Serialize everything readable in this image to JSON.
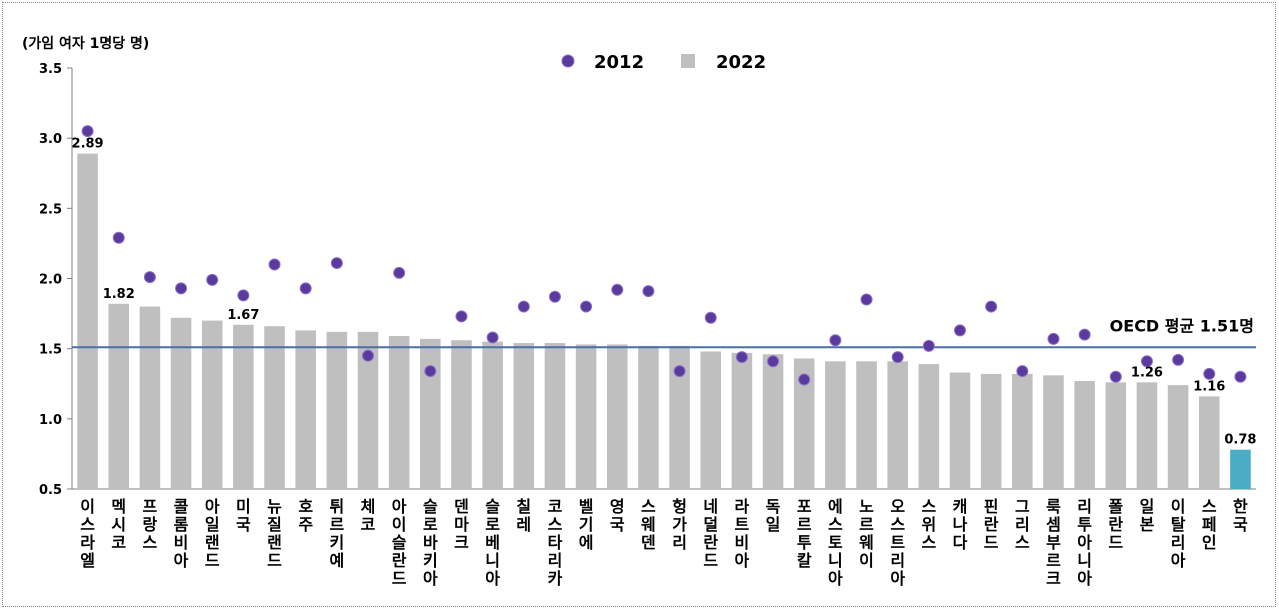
{
  "chart_data": {
    "type": "bar",
    "unit_label": "(가임 여자 1명당 명)",
    "ylim": [
      0.5,
      3.5
    ],
    "yticks": [
      "0.5",
      "1.0",
      "1.5",
      "2.0",
      "2.5",
      "3.0",
      "3.5"
    ],
    "legend": {
      "position": "top-center",
      "items": [
        "2012",
        "2022"
      ]
    },
    "categories": [
      "이스라엘",
      "멕시코",
      "프랑스",
      "콜롬비아",
      "아일랜드",
      "미국",
      "뉴질랜드",
      "호주",
      "튀르키예",
      "체코",
      "아이슬란드",
      "슬로바키아",
      "덴마크",
      "슬로베니아",
      "칠레",
      "코스타리카",
      "벨기에",
      "영국",
      "스웨덴",
      "헝가리",
      "네덜란드",
      "라트비아",
      "독일",
      "포르투칼",
      "에스토니아",
      "노르웨이",
      "오스트리아",
      "스위스",
      "캐나다",
      "핀란드",
      "그리스",
      "룩셈부르크",
      "리투아니아",
      "폴란드",
      "일본",
      "이탈리아",
      "스페인",
      "한국"
    ],
    "series": [
      {
        "name": "2022",
        "kind": "bar",
        "color": "#bfbfbf",
        "highlight_color": "#4bacc6",
        "highlight_index": 37,
        "values": [
          2.89,
          1.82,
          1.8,
          1.72,
          1.7,
          1.67,
          1.66,
          1.63,
          1.62,
          1.62,
          1.59,
          1.57,
          1.56,
          1.55,
          1.54,
          1.54,
          1.53,
          1.53,
          1.52,
          1.52,
          1.48,
          1.47,
          1.46,
          1.43,
          1.41,
          1.41,
          1.41,
          1.39,
          1.33,
          1.32,
          1.32,
          1.31,
          1.27,
          1.26,
          1.26,
          1.24,
          1.16,
          0.78
        ]
      },
      {
        "name": "2012",
        "kind": "marker",
        "color": "#5b3a9e",
        "values": [
          3.05,
          2.29,
          2.01,
          1.93,
          1.99,
          1.88,
          2.1,
          1.93,
          2.11,
          1.45,
          2.04,
          1.34,
          1.73,
          1.58,
          1.8,
          1.87,
          1.8,
          1.92,
          1.91,
          1.34,
          1.72,
          1.44,
          1.41,
          1.28,
          1.56,
          1.85,
          1.44,
          1.52,
          1.63,
          1.8,
          1.34,
          1.57,
          1.6,
          1.3,
          1.41,
          1.42,
          1.32,
          1.3
        ]
      }
    ],
    "data_labels": [
      {
        "index": 0,
        "text": "2.89"
      },
      {
        "index": 1,
        "text": "1.82"
      },
      {
        "index": 5,
        "text": "1.67"
      },
      {
        "index": 34,
        "text": "1.26"
      },
      {
        "index": 36,
        "text": "1.16"
      },
      {
        "index": 37,
        "text": "0.78"
      }
    ],
    "reference_line": {
      "value": 1.51,
      "label": "OECD 평균 1.51명",
      "color": "#4a6fa5"
    }
  }
}
